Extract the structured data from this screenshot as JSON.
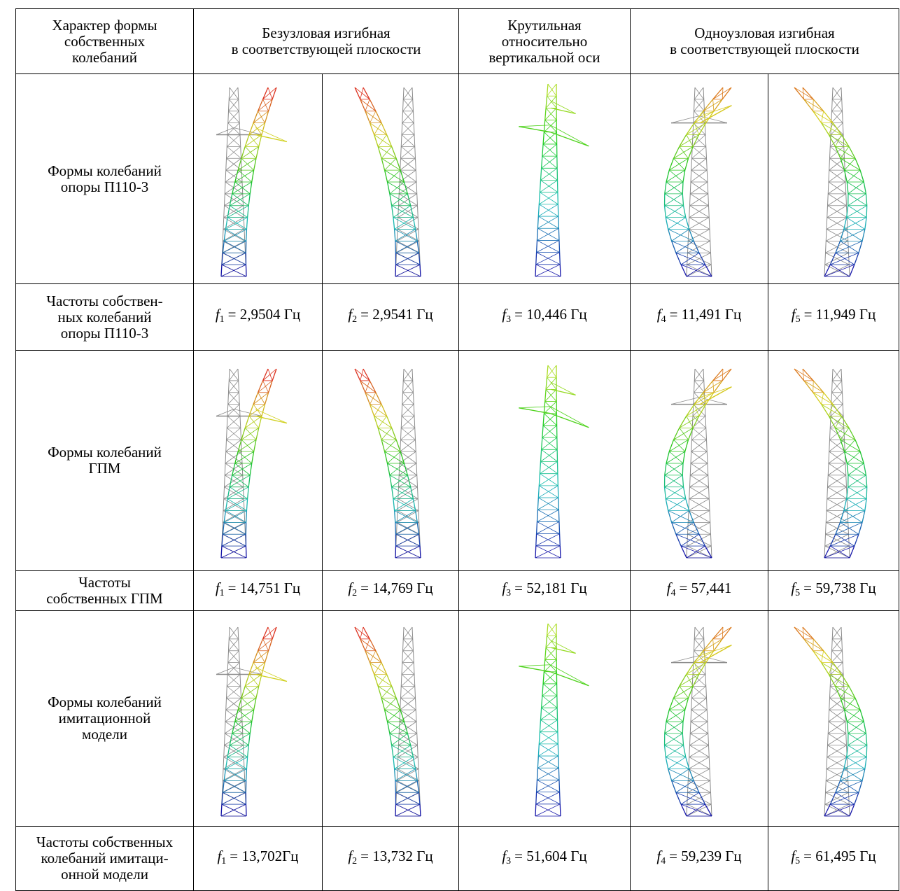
{
  "table": {
    "header": [
      [
        "Характер формы",
        "собственных",
        "колебаний"
      ],
      [
        "Безузловая изгибная",
        "в соответствующей плоскости"
      ],
      [
        "Крутильная",
        "относительно",
        "вертикальной оси"
      ],
      [
        "Одноузловая изгибная",
        "в соответствующей плоскости"
      ]
    ],
    "mode_rows": [
      {
        "label": [
          "Формы колебаний",
          "опоры П110-3"
        ]
      },
      {
        "label": [
          "Формы колебаний",
          "ГПМ"
        ]
      },
      {
        "label": [
          "Формы колебаний",
          "имитационной",
          "модели"
        ]
      }
    ],
    "frequency_rows": [
      {
        "label": [
          "Частоты собствен-",
          "ных колебаний",
          "опоры П110-3"
        ],
        "cells": [
          {
            "symbol": "f",
            "index": "1",
            "value": "= 2,9504 Гц"
          },
          {
            "symbol": "f",
            "index": "2",
            "value": "= 2,9541 Гц"
          },
          {
            "symbol": "f",
            "index": "3",
            "value": "= 10,446 Гц"
          },
          {
            "symbol": "f",
            "index": "4",
            "value": "= 11,491 Гц"
          },
          {
            "symbol": "f",
            "index": "5",
            "value": "= 11,949 Гц"
          }
        ]
      },
      {
        "label": [
          "Частоты",
          "собственных ГПМ"
        ],
        "cells": [
          {
            "symbol": "f",
            "index": "1",
            "value": "= 14,751 Гц"
          },
          {
            "symbol": "f",
            "index": "2",
            "value": "= 14,769 Гц"
          },
          {
            "symbol": "f",
            "index": "3",
            "value": "= 52,181 Гц"
          },
          {
            "symbol": "f",
            "index": "4",
            "value": "= 57,441"
          },
          {
            "symbol": "f",
            "index": "5",
            "value": "= 59,738 Гц"
          }
        ]
      },
      {
        "label": [
          "Частоты собственных",
          "колебаний имитаци-",
          "онной модели"
        ],
        "cells": [
          {
            "symbol": "f",
            "index": "1",
            "value": "= 13,702Гц"
          },
          {
            "symbol": "f",
            "index": "2",
            "value": "= 13,732 Гц"
          },
          {
            "symbol": "f",
            "index": "3",
            "value": "= 51,604 Гц"
          },
          {
            "symbol": "f",
            "index": "4",
            "value": "= 59,239 Гц"
          },
          {
            "symbol": "f",
            "index": "5",
            "value": "= 61,495 Гц"
          }
        ]
      }
    ]
  }
}
